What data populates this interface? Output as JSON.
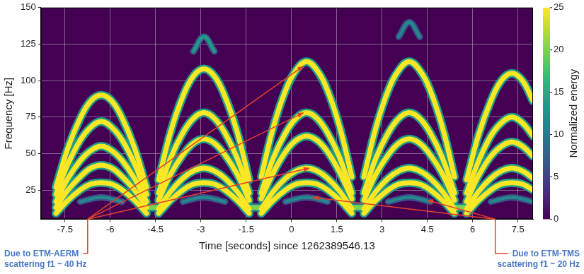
{
  "chart_data": {
    "type": "line",
    "x_label": "Time [seconds] since 1262389546.13",
    "y_label": "Frequency [Hz]",
    "xlim": [
      -8.3,
      8.0
    ],
    "xticks": [
      -7.5,
      -6,
      -4.5,
      -3,
      -1.5,
      0,
      1.5,
      3,
      4.5,
      6,
      7.5
    ],
    "ylim": [
      5,
      150
    ],
    "yticks": [
      25,
      50,
      75,
      100,
      125,
      150
    ],
    "grid": true,
    "colorbar": {
      "label": "Normalized energy",
      "range": [
        0,
        25
      ],
      "ticks": [
        0,
        5,
        10,
        15,
        20,
        25
      ]
    },
    "series": [
      {
        "energy": 25,
        "x": [
          -7.8,
          -7.4,
          -7.0,
          -6.65,
          -6.3,
          -5.95,
          -5.6,
          -5.2,
          -4.8
        ],
        "values": [
          27,
          54,
          74,
          86,
          90,
          86,
          74,
          54,
          27
        ]
      },
      {
        "energy": 25,
        "x": [
          -7.8,
          -7.4,
          -7.0,
          -6.65,
          -6.3,
          -5.95,
          -5.6,
          -5.2,
          -4.8
        ],
        "values": [
          22,
          43,
          59,
          68,
          72,
          68,
          59,
          43,
          22
        ]
      },
      {
        "energy": 25,
        "x": [
          -7.8,
          -7.4,
          -7.0,
          -6.65,
          -6.3,
          -5.95,
          -5.6,
          -5.2,
          -4.8
        ],
        "values": [
          17,
          33,
          45,
          52,
          55,
          52,
          45,
          33,
          17
        ]
      },
      {
        "energy": 25,
        "x": [
          -7.8,
          -7.4,
          -7.0,
          -6.65,
          -6.3,
          -5.95,
          -5.6,
          -5.2,
          -4.8
        ],
        "values": [
          13,
          25,
          34,
          40,
          42,
          40,
          34,
          25,
          13
        ]
      },
      {
        "energy": 25,
        "x": [
          -7.8,
          -7.4,
          -7.0,
          -6.65,
          -6.3,
          -5.95,
          -5.6,
          -5.2,
          -4.8
        ],
        "values": [
          9,
          18,
          25,
          29,
          30,
          29,
          25,
          18,
          9
        ]
      },
      {
        "energy": 25,
        "x": [
          -4.4,
          -4.0,
          -3.6,
          -3.25,
          -2.9,
          -2.55,
          -2.2,
          -1.8,
          -1.4
        ],
        "values": [
          32,
          65,
          89,
          103,
          108,
          103,
          89,
          65,
          32
        ]
      },
      {
        "energy": 25,
        "x": [
          -4.4,
          -4.0,
          -3.6,
          -3.25,
          -2.9,
          -2.55,
          -2.2,
          -1.8,
          -1.4
        ],
        "values": [
          23,
          47,
          64,
          74,
          78,
          74,
          64,
          47,
          23
        ]
      },
      {
        "energy": 25,
        "x": [
          -4.4,
          -4.0,
          -3.6,
          -3.25,
          -2.9,
          -2.55,
          -2.2,
          -1.8,
          -1.4
        ],
        "values": [
          18,
          36,
          49,
          57,
          60,
          57,
          49,
          36,
          18
        ]
      },
      {
        "energy": 25,
        "x": [
          -4.4,
          -4.0,
          -3.6,
          -3.25,
          -2.9,
          -2.55,
          -2.2,
          -1.8,
          -1.4
        ],
        "values": [
          12,
          24,
          33,
          38,
          40,
          38,
          33,
          24,
          12
        ]
      },
      {
        "energy": 25,
        "x": [
          -4.4,
          -4.0,
          -3.6,
          -3.25,
          -2.9,
          -2.55,
          -2.2,
          -1.8,
          -1.4
        ],
        "values": [
          9,
          18,
          25,
          29,
          30,
          29,
          25,
          18,
          9
        ]
      },
      {
        "energy": 25,
        "x": [
          -1.0,
          -0.6,
          -0.2,
          0.15,
          0.5,
          0.85,
          1.2,
          1.6,
          2.0
        ],
        "values": [
          34,
          68,
          93,
          107,
          113,
          107,
          93,
          68,
          34
        ]
      },
      {
        "energy": 25,
        "x": [
          -1.0,
          -0.6,
          -0.2,
          0.15,
          0.5,
          0.85,
          1.2,
          1.6,
          2.0
        ],
        "values": [
          23,
          47,
          64,
          74,
          78,
          74,
          64,
          47,
          23
        ]
      },
      {
        "energy": 25,
        "x": [
          -1.0,
          -0.6,
          -0.2,
          0.15,
          0.5,
          0.85,
          1.2,
          1.6,
          2.0
        ],
        "values": [
          19,
          37,
          51,
          59,
          62,
          59,
          51,
          37,
          19
        ]
      },
      {
        "energy": 25,
        "x": [
          -1.0,
          -0.6,
          -0.2,
          0.15,
          0.5,
          0.85,
          1.2,
          1.6,
          2.0
        ],
        "values": [
          12,
          24,
          33,
          38,
          40,
          38,
          33,
          24,
          12
        ]
      },
      {
        "energy": 25,
        "x": [
          -1.0,
          -0.6,
          -0.2,
          0.15,
          0.5,
          0.85,
          1.2,
          1.6,
          2.0
        ],
        "values": [
          9,
          18,
          25,
          29,
          30,
          29,
          25,
          18,
          9
        ]
      },
      {
        "energy": 25,
        "x": [
          2.4,
          2.8,
          3.2,
          3.55,
          3.9,
          4.25,
          4.6,
          5.0,
          5.4
        ],
        "values": [
          34,
          68,
          93,
          107,
          113,
          107,
          93,
          68,
          34
        ]
      },
      {
        "energy": 25,
        "x": [
          2.4,
          2.8,
          3.2,
          3.55,
          3.9,
          4.25,
          4.6,
          5.0,
          5.4
        ],
        "values": [
          23,
          47,
          64,
          74,
          78,
          74,
          64,
          47,
          23
        ]
      },
      {
        "energy": 25,
        "x": [
          2.4,
          2.8,
          3.2,
          3.55,
          3.9,
          4.25,
          4.6,
          5.0,
          5.4
        ],
        "values": [
          18,
          36,
          49,
          57,
          60,
          57,
          49,
          36,
          18
        ]
      },
      {
        "energy": 25,
        "x": [
          2.4,
          2.8,
          3.2,
          3.55,
          3.9,
          4.25,
          4.6,
          5.0,
          5.4
        ],
        "values": [
          12,
          24,
          33,
          38,
          40,
          38,
          33,
          24,
          12
        ]
      },
      {
        "energy": 25,
        "x": [
          2.4,
          2.8,
          3.2,
          3.55,
          3.9,
          4.25,
          4.6,
          5.0,
          5.4
        ],
        "values": [
          9,
          18,
          25,
          29,
          30,
          29,
          25,
          18,
          9
        ]
      },
      {
        "energy": 25,
        "x": [
          5.8,
          6.2,
          6.6,
          6.95,
          7.3,
          7.65,
          8.0
        ],
        "values": [
          32,
          63,
          86,
          100,
          105,
          100,
          86
        ]
      },
      {
        "energy": 25,
        "x": [
          5.8,
          6.2,
          6.6,
          6.95,
          7.3,
          7.65,
          8.0
        ],
        "values": [
          23,
          45,
          62,
          71,
          75,
          71,
          62
        ]
      },
      {
        "energy": 25,
        "x": [
          5.8,
          6.2,
          6.6,
          6.95,
          7.3,
          7.65,
          8.0
        ],
        "values": [
          17,
          35,
          48,
          55,
          58,
          55,
          48
        ]
      },
      {
        "energy": 25,
        "x": [
          5.8,
          6.2,
          6.6,
          6.95,
          7.3,
          7.65,
          8.0
        ],
        "values": [
          12,
          24,
          33,
          38,
          40,
          38,
          33
        ]
      },
      {
        "energy": 25,
        "x": [
          5.8,
          6.2,
          6.6,
          6.95,
          7.3,
          7.65,
          8.0
        ],
        "values": [
          9,
          18,
          25,
          29,
          30,
          29,
          25
        ]
      },
      {
        "energy": 14,
        "x": [
          -3.25,
          -2.9,
          -2.55
        ],
        "values": [
          120,
          130,
          120
        ]
      },
      {
        "energy": 12,
        "x": [
          3.55,
          3.9,
          4.25
        ],
        "values": [
          130,
          140,
          130
        ]
      },
      {
        "energy": 20,
        "x": [
          -4.9,
          -4.3
        ],
        "values": [
          13,
          13
        ]
      },
      {
        "energy": 20,
        "x": [
          -1.5,
          -0.9
        ],
        "values": [
          13,
          13
        ]
      },
      {
        "energy": 20,
        "x": [
          1.9,
          2.5
        ],
        "values": [
          13,
          13
        ]
      },
      {
        "energy": 20,
        "x": [
          5.3,
          5.9
        ],
        "values": [
          13,
          13
        ]
      },
      {
        "energy": 12,
        "x": [
          -7.0,
          -6.3,
          -5.6
        ],
        "values": [
          17,
          20,
          17
        ]
      },
      {
        "energy": 12,
        "x": [
          -3.6,
          -2.9,
          -2.2
        ],
        "values": [
          17,
          20,
          17
        ]
      },
      {
        "energy": 12,
        "x": [
          -0.2,
          0.5,
          1.2
        ],
        "values": [
          17,
          20,
          17
        ]
      },
      {
        "energy": 12,
        "x": [
          3.2,
          3.9,
          4.6
        ],
        "values": [
          17,
          20,
          17
        ]
      },
      {
        "energy": 12,
        "x": [
          6.6,
          7.3,
          8.0
        ],
        "values": [
          17,
          20,
          17
        ]
      }
    ],
    "annotations": [
      {
        "text": "Due to ETM-AERM\nscattering f1 ~ 40 Hz",
        "targets": [
          [
            0.4,
            110
          ],
          [
            0.4,
            78
          ],
          [
            0.6,
            40
          ]
        ]
      },
      {
        "text": "Due to ETM-TMS\nscattering f1 ~ 20 Hz",
        "targets": [
          [
            0.7,
            20
          ],
          [
            4.5,
            18
          ]
        ]
      }
    ]
  }
}
